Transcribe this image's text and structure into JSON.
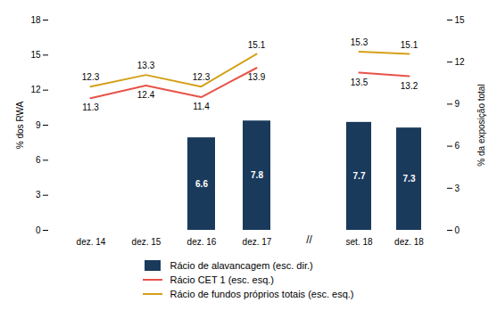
{
  "chart_data": [
    {
      "type": "bar",
      "categories": [
        "dez. 14",
        "dez. 15",
        "dez. 16",
        "dez. 17"
      ],
      "series": [
        {
          "name": "Rácio de alavancagem (esc. dir.)",
          "type": "bar",
          "color": "#1a3a5c",
          "axis": "y2",
          "values": [
            null,
            null,
            6.6,
            7.8
          ]
        },
        {
          "name": "Rácio CET 1 (esc. esq.)",
          "type": "line",
          "color": "#e8534a",
          "values": [
            11.3,
            12.4,
            11.4,
            13.9
          ]
        },
        {
          "name": "Rácio de fundos próprios totais (esc. esq.)",
          "type": "line",
          "color": "#d4a017",
          "values": [
            12.3,
            13.3,
            12.3,
            15.1
          ]
        }
      ],
      "ylabel": "% dos RWA",
      "ylim": [
        0,
        18
      ],
      "yticks": [
        0,
        3,
        6,
        9,
        12,
        15,
        18
      ],
      "y2lim": [
        0,
        15
      ],
      "data_labels": true,
      "legend": "bottom",
      "annotations": [
        "//"
      ]
    },
    {
      "type": "bar",
      "categories": [
        "set. 18",
        "dez. 18"
      ],
      "series": [
        {
          "name": "Rácio de alavancagem (esc. dir.)",
          "type": "bar",
          "color": "#1a3a5c",
          "axis": "y2",
          "values": [
            7.7,
            7.3
          ]
        },
        {
          "name": "Rácio CET 1 (esc. esq.)",
          "type": "line",
          "color": "#e8534a",
          "values": [
            13.5,
            13.2
          ]
        },
        {
          "name": "Rácio de fundos próprios totais (esc. esq.)",
          "type": "line",
          "color": "#d4a017",
          "values": [
            15.3,
            15.1
          ]
        }
      ],
      "ylim": [
        0,
        18
      ],
      "y2label": "% da exposição total",
      "y2lim": [
        0,
        15
      ],
      "y2ticks": [
        0,
        3,
        6,
        9,
        12,
        15
      ],
      "data_labels": true
    }
  ]
}
